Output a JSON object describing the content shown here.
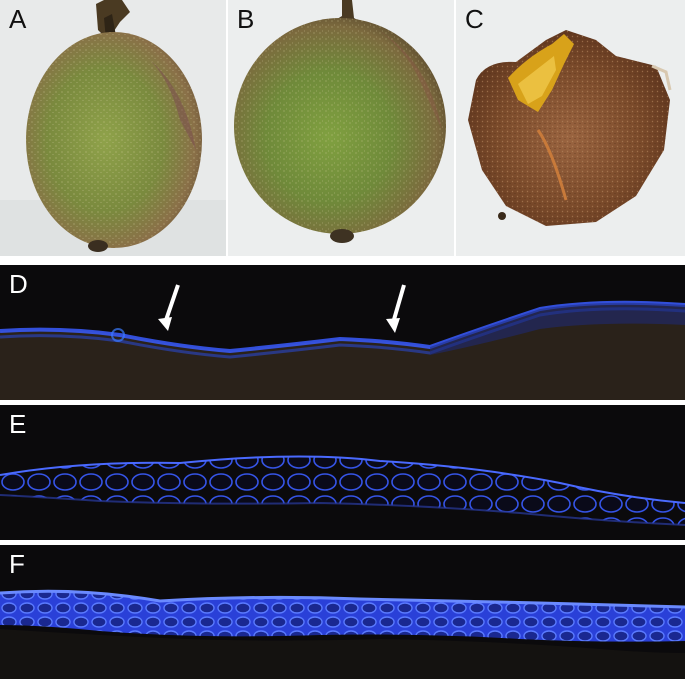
{
  "panels": [
    {
      "id": "A",
      "label": "A"
    },
    {
      "id": "B",
      "label": "B"
    },
    {
      "id": "C",
      "label": "C"
    },
    {
      "id": "D",
      "label": "D"
    },
    {
      "id": "E",
      "label": "E"
    },
    {
      "id": "F",
      "label": "F"
    }
  ],
  "colors": {
    "photo_background": "#eceeee",
    "fruit_green": "#6f8a3a",
    "fruit_brown": "#8a6a46",
    "peeled_skin": "#7a4a2a",
    "flesh_yellow": "#d8a21a",
    "micrograph_background": "#0b0a0c",
    "fluorescence_blue": "#3a5cff",
    "arrow": "#ffffff"
  }
}
